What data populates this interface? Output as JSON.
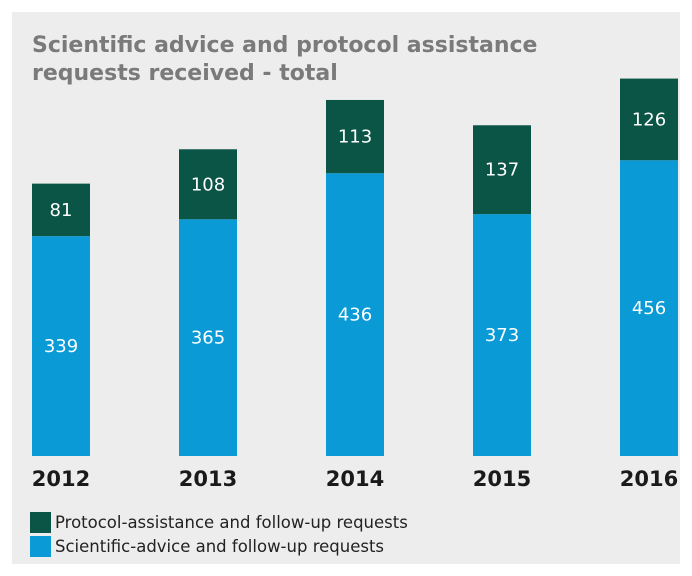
{
  "chart_data": {
    "type": "bar",
    "stacked": true,
    "title": "Scientific advice and protocol assistance requests received - total",
    "categories": [
      "2012",
      "2013",
      "2014",
      "2015",
      "2016"
    ],
    "series": [
      {
        "name": "Scientific-advice and follow-up requests",
        "values": [
          339,
          365,
          436,
          373,
          456
        ],
        "color": "#0a9bd7"
      },
      {
        "name": "Protocol-assistance and follow-up requests",
        "values": [
          81,
          108,
          113,
          137,
          126
        ],
        "color": "#0a5546"
      }
    ],
    "grid": false,
    "legend": "bottom-left"
  },
  "legend": {
    "items": [
      {
        "label": "Protocol-assistance and follow-up requests",
        "color": "#0a5546"
      },
      {
        "label": "Scientific-advice and follow-up requests",
        "color": "#0a9bd7"
      }
    ]
  }
}
